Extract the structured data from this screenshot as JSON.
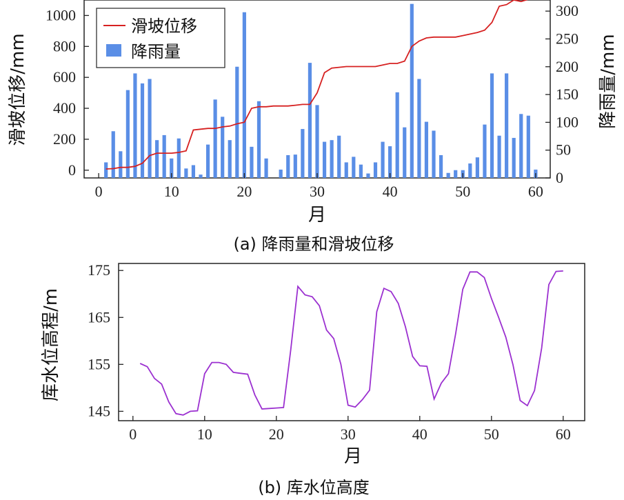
{
  "chart_data": [
    {
      "type": "bar+line",
      "caption": "(a) 降雨量和滑坡位移",
      "xlabel": "月",
      "ylabel_left": "滑坡位移/mm",
      "ylabel_right": "降雨量/mm",
      "xlim": [
        -2,
        62
      ],
      "xticks": [
        0,
        10,
        20,
        30,
        40,
        50,
        60
      ],
      "ylim_left": [
        -50,
        1100
      ],
      "yticks_left": [
        0,
        200,
        400,
        600,
        800,
        1000
      ],
      "ylim_right": [
        0,
        320
      ],
      "yticks_right": [
        0,
        50,
        100,
        150,
        200,
        250,
        300
      ],
      "legend_position": "top-left",
      "series": [
        {
          "name": "滑坡位移",
          "kind": "line",
          "axis": "left",
          "color": "#d62020",
          "x": [
            1,
            2,
            3,
            4,
            5,
            6,
            7,
            8,
            9,
            10,
            11,
            12,
            13,
            14,
            15,
            16,
            17,
            18,
            19,
            20,
            21,
            22,
            23,
            24,
            25,
            26,
            27,
            28,
            29,
            30,
            31,
            32,
            33,
            34,
            35,
            36,
            37,
            38,
            39,
            40,
            41,
            42,
            43,
            44,
            45,
            46,
            47,
            48,
            49,
            50,
            51,
            52,
            53,
            54,
            55,
            56,
            57,
            58,
            59,
            60
          ],
          "values": [
            8,
            10,
            18,
            18,
            25,
            45,
            95,
            110,
            110,
            110,
            115,
            125,
            260,
            265,
            270,
            270,
            280,
            285,
            300,
            310,
            400,
            410,
            410,
            415,
            415,
            415,
            420,
            425,
            425,
            500,
            630,
            660,
            665,
            670,
            670,
            670,
            670,
            670,
            680,
            690,
            690,
            705,
            800,
            835,
            855,
            860,
            860,
            860,
            860,
            870,
            880,
            890,
            905,
            955,
            1060,
            1070,
            1100,
            1090,
            1105,
            1108
          ]
        },
        {
          "name": "降雨量",
          "kind": "bar",
          "axis": "right",
          "color": "#5a8ee6",
          "x": [
            1,
            2,
            3,
            4,
            5,
            6,
            7,
            8,
            9,
            10,
            11,
            12,
            13,
            14,
            15,
            16,
            17,
            18,
            19,
            20,
            21,
            22,
            23,
            24,
            25,
            26,
            27,
            28,
            29,
            30,
            31,
            32,
            33,
            34,
            35,
            36,
            37,
            38,
            39,
            40,
            41,
            42,
            43,
            44,
            45,
            46,
            47,
            48,
            49,
            50,
            51,
            52,
            53,
            54,
            55,
            56,
            57,
            58,
            59,
            60
          ],
          "values": [
            28,
            84,
            48,
            158,
            188,
            170,
            178,
            68,
            77,
            35,
            71,
            17,
            23,
            6,
            60,
            141,
            110,
            68,
            200,
            298,
            56,
            138,
            35,
            0,
            15,
            41,
            42,
            88,
            207,
            131,
            65,
            68,
            76,
            28,
            38,
            24,
            8,
            28,
            65,
            57,
            154,
            91,
            313,
            178,
            101,
            85,
            41,
            9,
            14,
            14,
            26,
            37,
            96,
            188,
            76,
            188,
            72,
            115,
            112,
            15
          ]
        }
      ]
    },
    {
      "type": "line",
      "caption": "(b) 库水位高度",
      "xlabel": "月",
      "ylabel": "库水位高程/m",
      "xlim": [
        -2,
        63
      ],
      "xticks": [
        0,
        10,
        20,
        30,
        40,
        50,
        60
      ],
      "ylim": [
        143,
        176.5
      ],
      "yticks": [
        145,
        155,
        165,
        175
      ],
      "series": [
        {
          "name": "",
          "color": "#9b30d0",
          "x": [
            1,
            2,
            3,
            4,
            5,
            6,
            7,
            8,
            9,
            10,
            11,
            12,
            13,
            14,
            15,
            16,
            17,
            18,
            19,
            20,
            21,
            22,
            23,
            24,
            25,
            26,
            27,
            28,
            29,
            30,
            31,
            32,
            33,
            34,
            35,
            36,
            37,
            38,
            39,
            40,
            41,
            42,
            43,
            44,
            45,
            46,
            47,
            48,
            49,
            50,
            51,
            52,
            53,
            54,
            55,
            56,
            57,
            58,
            59,
            60
          ],
          "values": [
            155.2,
            154.5,
            152.0,
            150.8,
            147.0,
            144.5,
            144.2,
            145.0,
            145.1,
            153.0,
            155.4,
            155.4,
            155.0,
            153.3,
            153.1,
            152.9,
            148.5,
            145.5,
            145.6,
            145.7,
            145.8,
            158.0,
            171.6,
            169.8,
            169.4,
            167.5,
            162.3,
            160.5,
            155.0,
            146.3,
            145.9,
            147.5,
            149.5,
            166.2,
            171.2,
            170.5,
            168.0,
            163.0,
            156.7,
            154.7,
            154.6,
            147.6,
            151.0,
            153.0,
            161.5,
            171.0,
            174.7,
            174.7,
            173.5,
            169.0,
            165.0,
            160.8,
            154.9,
            147.3,
            146.2,
            149.4,
            158.5,
            172.0,
            174.8,
            174.9
          ]
        }
      ]
    }
  ]
}
